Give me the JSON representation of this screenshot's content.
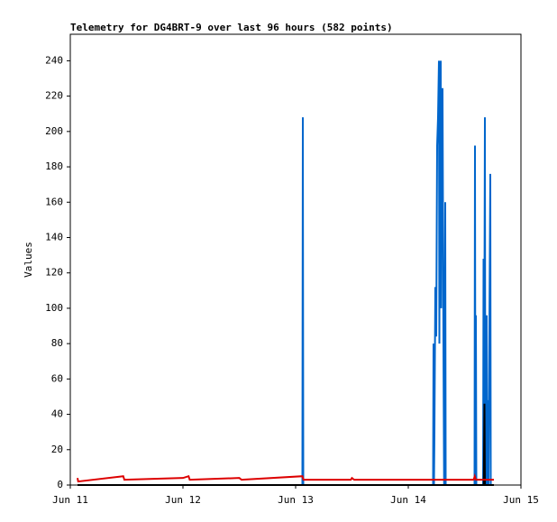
{
  "chart_data": {
    "type": "line",
    "title": "Telemetry for DG4BRT-9 over last 96 hours (582 points)",
    "y_label": "Values",
    "xlim": [
      0,
      4
    ],
    "xticks": [
      {
        "value": 0,
        "label": "Jun 11"
      },
      {
        "value": 1,
        "label": "Jun 12"
      },
      {
        "value": 2,
        "label": "Jun 13"
      },
      {
        "value": 3,
        "label": "Jun 14"
      },
      {
        "value": 4,
        "label": "Jun 15"
      }
    ],
    "ylim": [
      0,
      255
    ],
    "yticks": [
      0,
      20,
      40,
      60,
      80,
      100,
      120,
      140,
      160,
      180,
      200,
      220,
      240
    ],
    "series": [
      {
        "color": "#0066cc",
        "x": [
          0.064,
          2.06,
          2.064,
          2.068,
          3.22,
          3.224,
          3.228,
          3.232,
          3.24,
          3.248,
          3.256,
          3.264,
          3.272,
          3.276,
          3.28,
          3.288,
          3.292,
          3.296,
          3.304,
          3.312,
          3.318,
          3.328,
          3.332,
          3.588,
          3.592,
          3.596,
          3.6,
          3.604,
          3.664,
          3.668,
          3.672,
          3.68,
          3.684,
          3.696,
          3.7,
          3.708,
          3.712,
          3.728,
          3.732,
          3.76
        ],
        "values": [
          0,
          0,
          208,
          0,
          0,
          80,
          0,
          28,
          112,
          84,
          192,
          208,
          240,
          80,
          224,
          240,
          100,
          224,
          224,
          80,
          0,
          160,
          0,
          0,
          192,
          0,
          96,
          0,
          0,
          128,
          0,
          208,
          0,
          96,
          0,
          48,
          0,
          176,
          0,
          0
        ]
      },
      {
        "color": "#000000",
        "x": [
          0.064,
          3.67,
          3.676,
          3.68,
          3.76
        ],
        "values": [
          0,
          0,
          46,
          0,
          0
        ]
      },
      {
        "color": "#dd0000",
        "x": [
          0.064,
          0.07,
          0.47,
          0.48,
          1.0,
          1.05,
          1.06,
          1.5,
          1.52,
          2.06,
          2.07,
          2.49,
          2.5,
          2.52,
          3.58,
          3.59,
          3.6,
          3.76
        ],
        "values": [
          4,
          2,
          5,
          3,
          4,
          5,
          3,
          4,
          3,
          5,
          3,
          3,
          4,
          3,
          3,
          5,
          3,
          3
        ]
      }
    ]
  }
}
